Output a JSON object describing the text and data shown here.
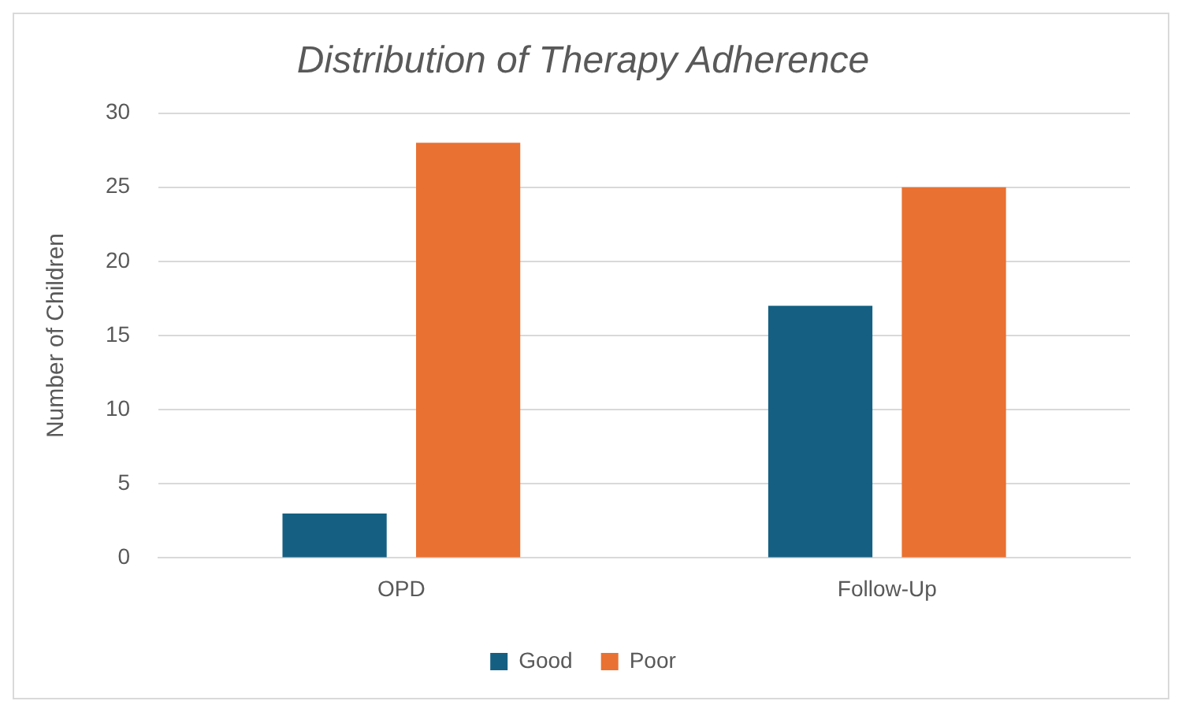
{
  "chart_data": {
    "type": "bar",
    "title": "Distribution of Therapy Adherence",
    "ylabel": "Number of Children",
    "categories": [
      "OPD",
      "Follow-Up"
    ],
    "series": [
      {
        "name": "Good",
        "color": "#156082",
        "values": [
          3,
          17
        ]
      },
      {
        "name": "Poor",
        "color": "#e97132",
        "values": [
          28,
          25
        ]
      }
    ],
    "ylim": [
      0,
      30
    ],
    "yticks": [
      0,
      5,
      10,
      15,
      20,
      25,
      30
    ],
    "grid": "y",
    "legend": "bottom"
  }
}
